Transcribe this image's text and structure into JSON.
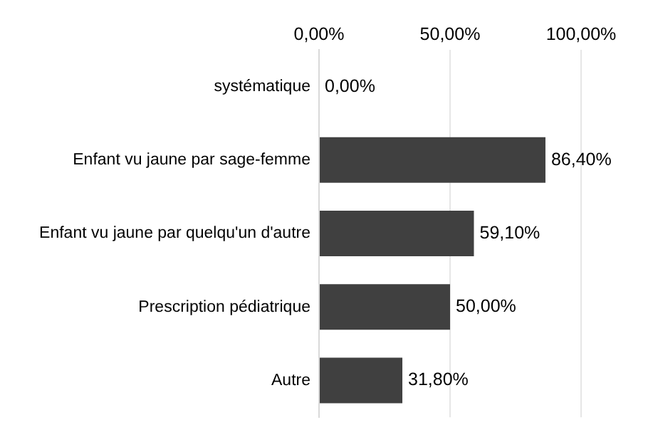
{
  "chart_data": {
    "type": "bar",
    "orientation": "horizontal",
    "categories": [
      "systématique",
      "Enfant vu jaune par sage-femme",
      "Enfant vu jaune par quelqu'un d'autre",
      "Prescription pédiatrique",
      "Autre"
    ],
    "values": [
      0,
      86.4,
      59.1,
      50,
      31.8
    ],
    "value_labels": [
      "0,00%",
      "86,40%",
      "59,10%",
      "50,00%",
      "31,80%"
    ],
    "color": "#404040",
    "xlim": [
      0,
      100
    ],
    "xticks": [
      {
        "value": 0,
        "label": "0,00%"
      },
      {
        "value": 50,
        "label": "50,00%"
      },
      {
        "value": 100,
        "label": "100,00%"
      }
    ],
    "grid": "x",
    "legend": false
  }
}
